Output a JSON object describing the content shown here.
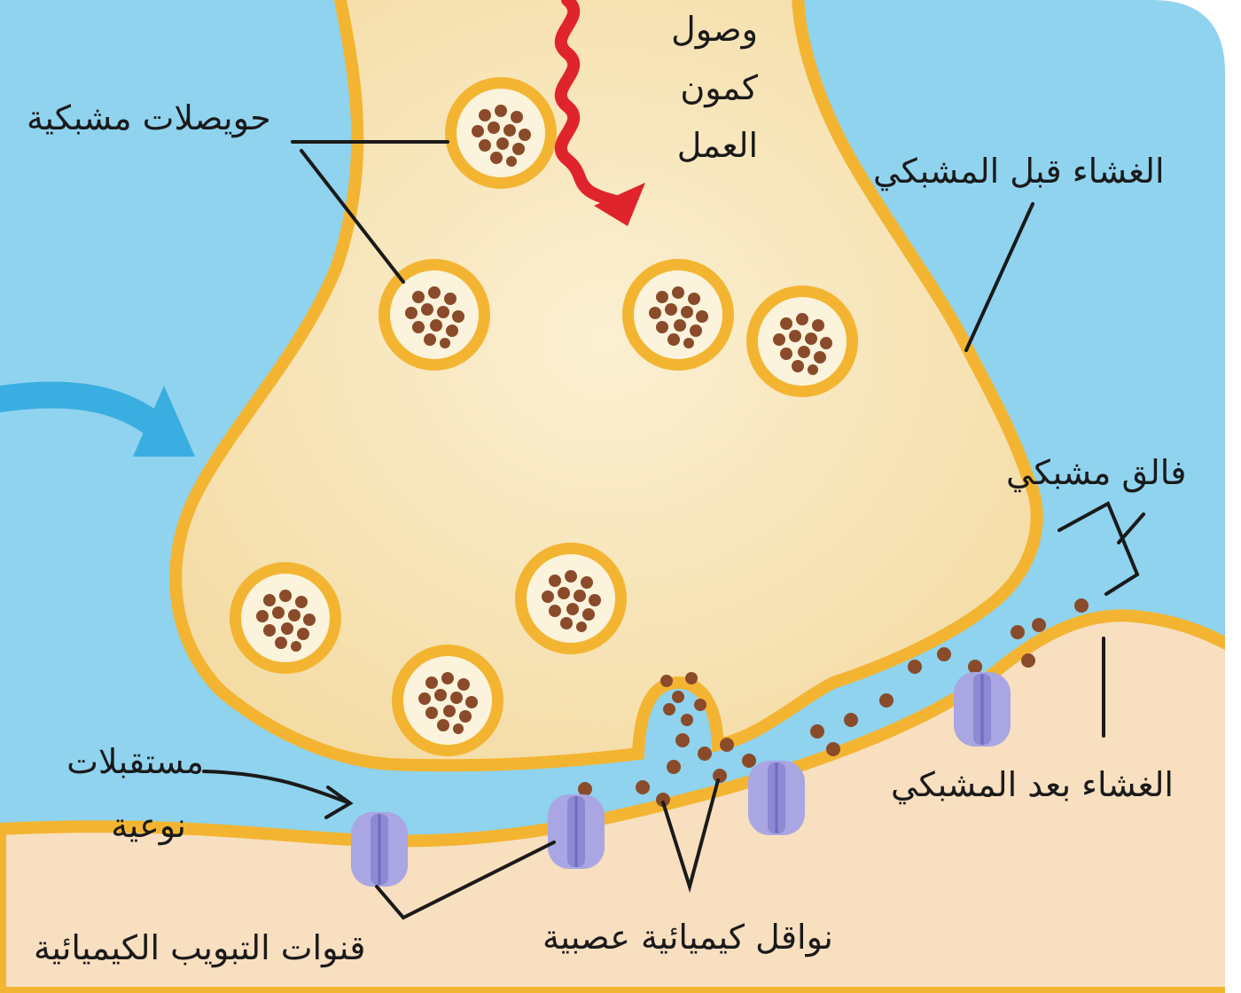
{
  "labels": {
    "action_potential": [
      "وصول",
      "كمون",
      "العمل"
    ],
    "synaptic_vesicles": "حويصلات مشبكية",
    "presynaptic_membrane": "الغشاء قبل المشبكي",
    "synaptic_cleft": "فالق مشبكي",
    "postsynaptic_membrane": "الغشاء بعد المشبكي",
    "specific_receptors": [
      "مستقبلات",
      "نوعية"
    ],
    "chemical_gated_channels": "قنوات التبويب الكيميائية",
    "neurotransmitters": "نواقل كيميائية عصبية"
  },
  "colors": {
    "background": "#8fd3ef",
    "terminal_fill": "#f7e4b4",
    "membrane": "#f3b531",
    "post_fill": "#f7dfc0",
    "transmitter": "#8a4b2a",
    "receptor": "#a9a6e3",
    "arrow_impulse": "#e0242c",
    "arrow_flow": "#3aaee0"
  }
}
